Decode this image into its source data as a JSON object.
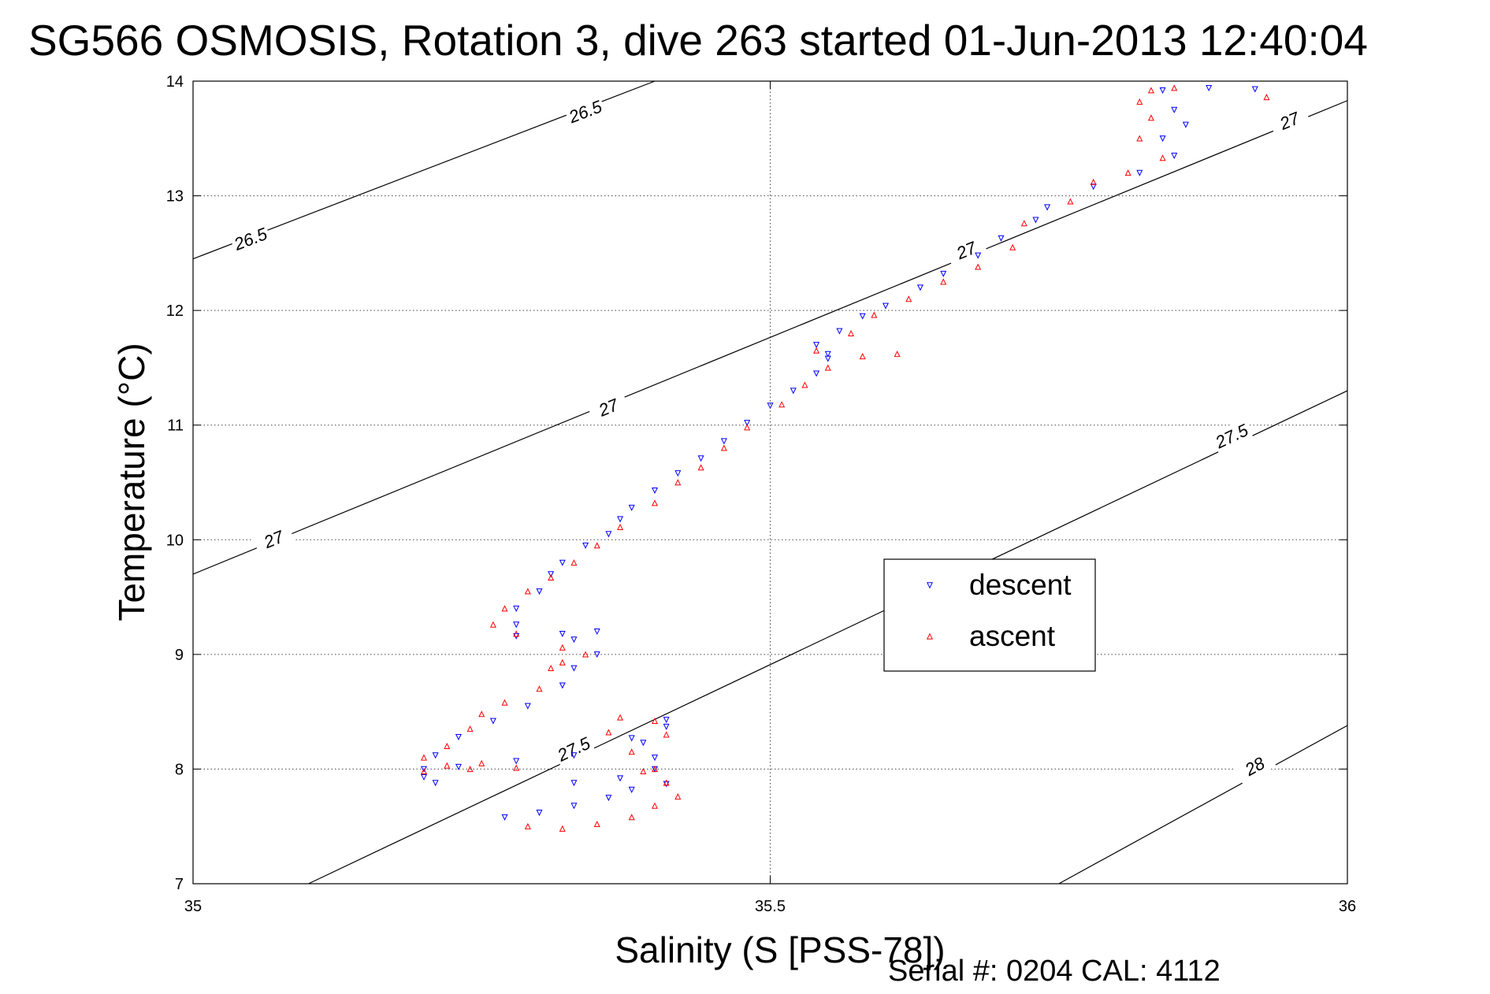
{
  "chart_data": {
    "type": "scatter",
    "title": "SG566 OSMOSIS, Rotation 3, dive 263 started 01-Jun-2013 12:40:04",
    "xlabel": "Salinity (S [PSS-78])",
    "ylabel": "Temperature (°C)",
    "footer": "Serial #: 0204  CAL: 4112",
    "xlim": [
      35,
      36
    ],
    "ylim": [
      7,
      14
    ],
    "x_ticks": [
      "35",
      "35.5",
      "36"
    ],
    "y_ticks": [
      "7",
      "8",
      "9",
      "10",
      "11",
      "12",
      "13",
      "14"
    ],
    "grid": true,
    "legend_position": "center-right",
    "colors": {
      "descent": "#0000ff",
      "ascent": "#ff0000",
      "contour": "#000000"
    },
    "series": [
      {
        "name": "descent",
        "marker": "triangle-down",
        "color": "#0000ff",
        "points": [
          [
            35.41,
            7.87
          ],
          [
            35.38,
            7.82
          ],
          [
            35.36,
            7.75
          ],
          [
            35.33,
            7.68
          ],
          [
            35.3,
            7.62
          ],
          [
            35.27,
            7.58
          ],
          [
            35.33,
            7.88
          ],
          [
            35.37,
            7.92
          ],
          [
            35.4,
            8.0
          ],
          [
            35.4,
            8.1
          ],
          [
            35.39,
            8.23
          ],
          [
            35.41,
            8.37
          ],
          [
            35.41,
            8.43
          ],
          [
            35.38,
            8.27
          ],
          [
            35.33,
            8.12
          ],
          [
            35.28,
            8.07
          ],
          [
            35.23,
            8.02
          ],
          [
            35.2,
            7.93
          ],
          [
            35.21,
            7.88
          ],
          [
            35.2,
            8.0
          ],
          [
            35.21,
            8.12
          ],
          [
            35.23,
            8.28
          ],
          [
            35.26,
            8.42
          ],
          [
            35.29,
            8.55
          ],
          [
            35.32,
            8.73
          ],
          [
            35.33,
            8.88
          ],
          [
            35.35,
            9.0
          ],
          [
            35.33,
            9.13
          ],
          [
            35.35,
            9.2
          ],
          [
            35.32,
            9.18
          ],
          [
            35.28,
            9.16
          ],
          [
            35.28,
            9.26
          ],
          [
            35.28,
            9.4
          ],
          [
            35.3,
            9.55
          ],
          [
            35.31,
            9.7
          ],
          [
            35.32,
            9.8
          ],
          [
            35.34,
            9.95
          ],
          [
            35.36,
            10.05
          ],
          [
            35.37,
            10.18
          ],
          [
            35.38,
            10.28
          ],
          [
            35.4,
            10.43
          ],
          [
            35.42,
            10.58
          ],
          [
            35.44,
            10.71
          ],
          [
            35.46,
            10.86
          ],
          [
            35.48,
            11.02
          ],
          [
            35.5,
            11.17
          ],
          [
            35.52,
            11.3
          ],
          [
            35.54,
            11.45
          ],
          [
            35.55,
            11.58
          ],
          [
            35.55,
            11.62
          ],
          [
            35.54,
            11.7
          ],
          [
            35.56,
            11.82
          ],
          [
            35.58,
            11.95
          ],
          [
            35.6,
            12.04
          ],
          [
            35.63,
            12.2
          ],
          [
            35.65,
            12.32
          ],
          [
            35.68,
            12.48
          ],
          [
            35.7,
            12.63
          ],
          [
            35.73,
            12.79
          ],
          [
            35.74,
            12.9
          ],
          [
            35.78,
            13.08
          ],
          [
            35.82,
            13.2
          ],
          [
            35.85,
            13.35
          ],
          [
            35.84,
            13.5
          ],
          [
            35.86,
            13.62
          ],
          [
            35.85,
            13.75
          ],
          [
            35.84,
            13.92
          ],
          [
            35.88,
            13.94
          ],
          [
            35.92,
            13.93
          ]
        ]
      },
      {
        "name": "ascent",
        "marker": "triangle-up",
        "color": "#ff0000",
        "points": [
          [
            35.29,
            7.5
          ],
          [
            35.32,
            7.48
          ],
          [
            35.35,
            7.52
          ],
          [
            35.38,
            7.58
          ],
          [
            35.4,
            7.68
          ],
          [
            35.42,
            7.76
          ],
          [
            35.41,
            7.88
          ],
          [
            35.39,
            7.98
          ],
          [
            35.4,
            8.0
          ],
          [
            35.38,
            8.15
          ],
          [
            35.41,
            8.3
          ],
          [
            35.4,
            8.42
          ],
          [
            35.37,
            8.45
          ],
          [
            35.36,
            8.32
          ],
          [
            35.22,
            8.03
          ],
          [
            35.25,
            8.05
          ],
          [
            35.28,
            8.01
          ],
          [
            35.24,
            8.0
          ],
          [
            35.2,
            7.98
          ],
          [
            35.2,
            8.1
          ],
          [
            35.22,
            8.2
          ],
          [
            35.24,
            8.35
          ],
          [
            35.25,
            8.48
          ],
          [
            35.27,
            8.58
          ],
          [
            35.3,
            8.7
          ],
          [
            35.31,
            8.88
          ],
          [
            35.32,
            8.93
          ],
          [
            35.34,
            9.0
          ],
          [
            35.32,
            9.06
          ],
          [
            35.28,
            9.18
          ],
          [
            35.26,
            9.26
          ],
          [
            35.27,
            9.4
          ],
          [
            35.29,
            9.55
          ],
          [
            35.31,
            9.67
          ],
          [
            35.33,
            9.8
          ],
          [
            35.35,
            9.95
          ],
          [
            35.37,
            10.11
          ],
          [
            35.4,
            10.32
          ],
          [
            35.42,
            10.5
          ],
          [
            35.44,
            10.63
          ],
          [
            35.46,
            10.8
          ],
          [
            35.48,
            10.98
          ],
          [
            35.51,
            11.18
          ],
          [
            35.53,
            11.35
          ],
          [
            35.55,
            11.5
          ],
          [
            35.58,
            11.6
          ],
          [
            35.61,
            11.62
          ],
          [
            35.54,
            11.65
          ],
          [
            35.57,
            11.8
          ],
          [
            35.59,
            11.96
          ],
          [
            35.62,
            12.1
          ],
          [
            35.65,
            12.25
          ],
          [
            35.68,
            12.38
          ],
          [
            35.71,
            12.55
          ],
          [
            35.72,
            12.76
          ],
          [
            35.76,
            12.95
          ],
          [
            35.78,
            13.12
          ],
          [
            35.81,
            13.2
          ],
          [
            35.84,
            13.33
          ],
          [
            35.82,
            13.5
          ],
          [
            35.83,
            13.68
          ],
          [
            35.82,
            13.82
          ],
          [
            35.83,
            13.92
          ],
          [
            35.85,
            13.94
          ],
          [
            35.93,
            13.86
          ]
        ]
      }
    ],
    "contours": [
      {
        "level": "26.5",
        "line": [
          [
            35.0,
            12.45
          ],
          [
            35.4,
            14.0
          ]
        ],
        "labels": [
          {
            "text": "26.5",
            "at": [
              35.05,
              12.62
            ]
          },
          {
            "text": "26.5",
            "at": [
              35.34,
              13.73
            ]
          }
        ]
      },
      {
        "level": "27",
        "line": [
          [
            35.0,
            9.7
          ],
          [
            36.0,
            13.83
          ]
        ],
        "labels": [
          {
            "text": "27",
            "at": [
              35.07,
              10.0
            ]
          },
          {
            "text": "27",
            "at": [
              35.36,
              11.15
            ]
          },
          {
            "text": "27",
            "at": [
              35.67,
              12.52
            ]
          },
          {
            "text": "27",
            "at": [
              35.95,
              13.65
            ]
          }
        ]
      },
      {
        "level": "27.5",
        "line": [
          [
            35.1,
            7.0
          ],
          [
            36.0,
            11.3
          ]
        ],
        "labels": [
          {
            "text": "27.5",
            "at": [
              35.33,
              8.17
            ]
          },
          {
            "text": "27.5",
            "at": [
              35.9,
              10.9
            ]
          }
        ]
      },
      {
        "level": "28",
        "line": [
          [
            35.75,
            7.0
          ],
          [
            36.0,
            8.38
          ]
        ],
        "labels": [
          {
            "text": "28",
            "at": [
              35.92,
              8.02
            ]
          }
        ]
      }
    ]
  }
}
